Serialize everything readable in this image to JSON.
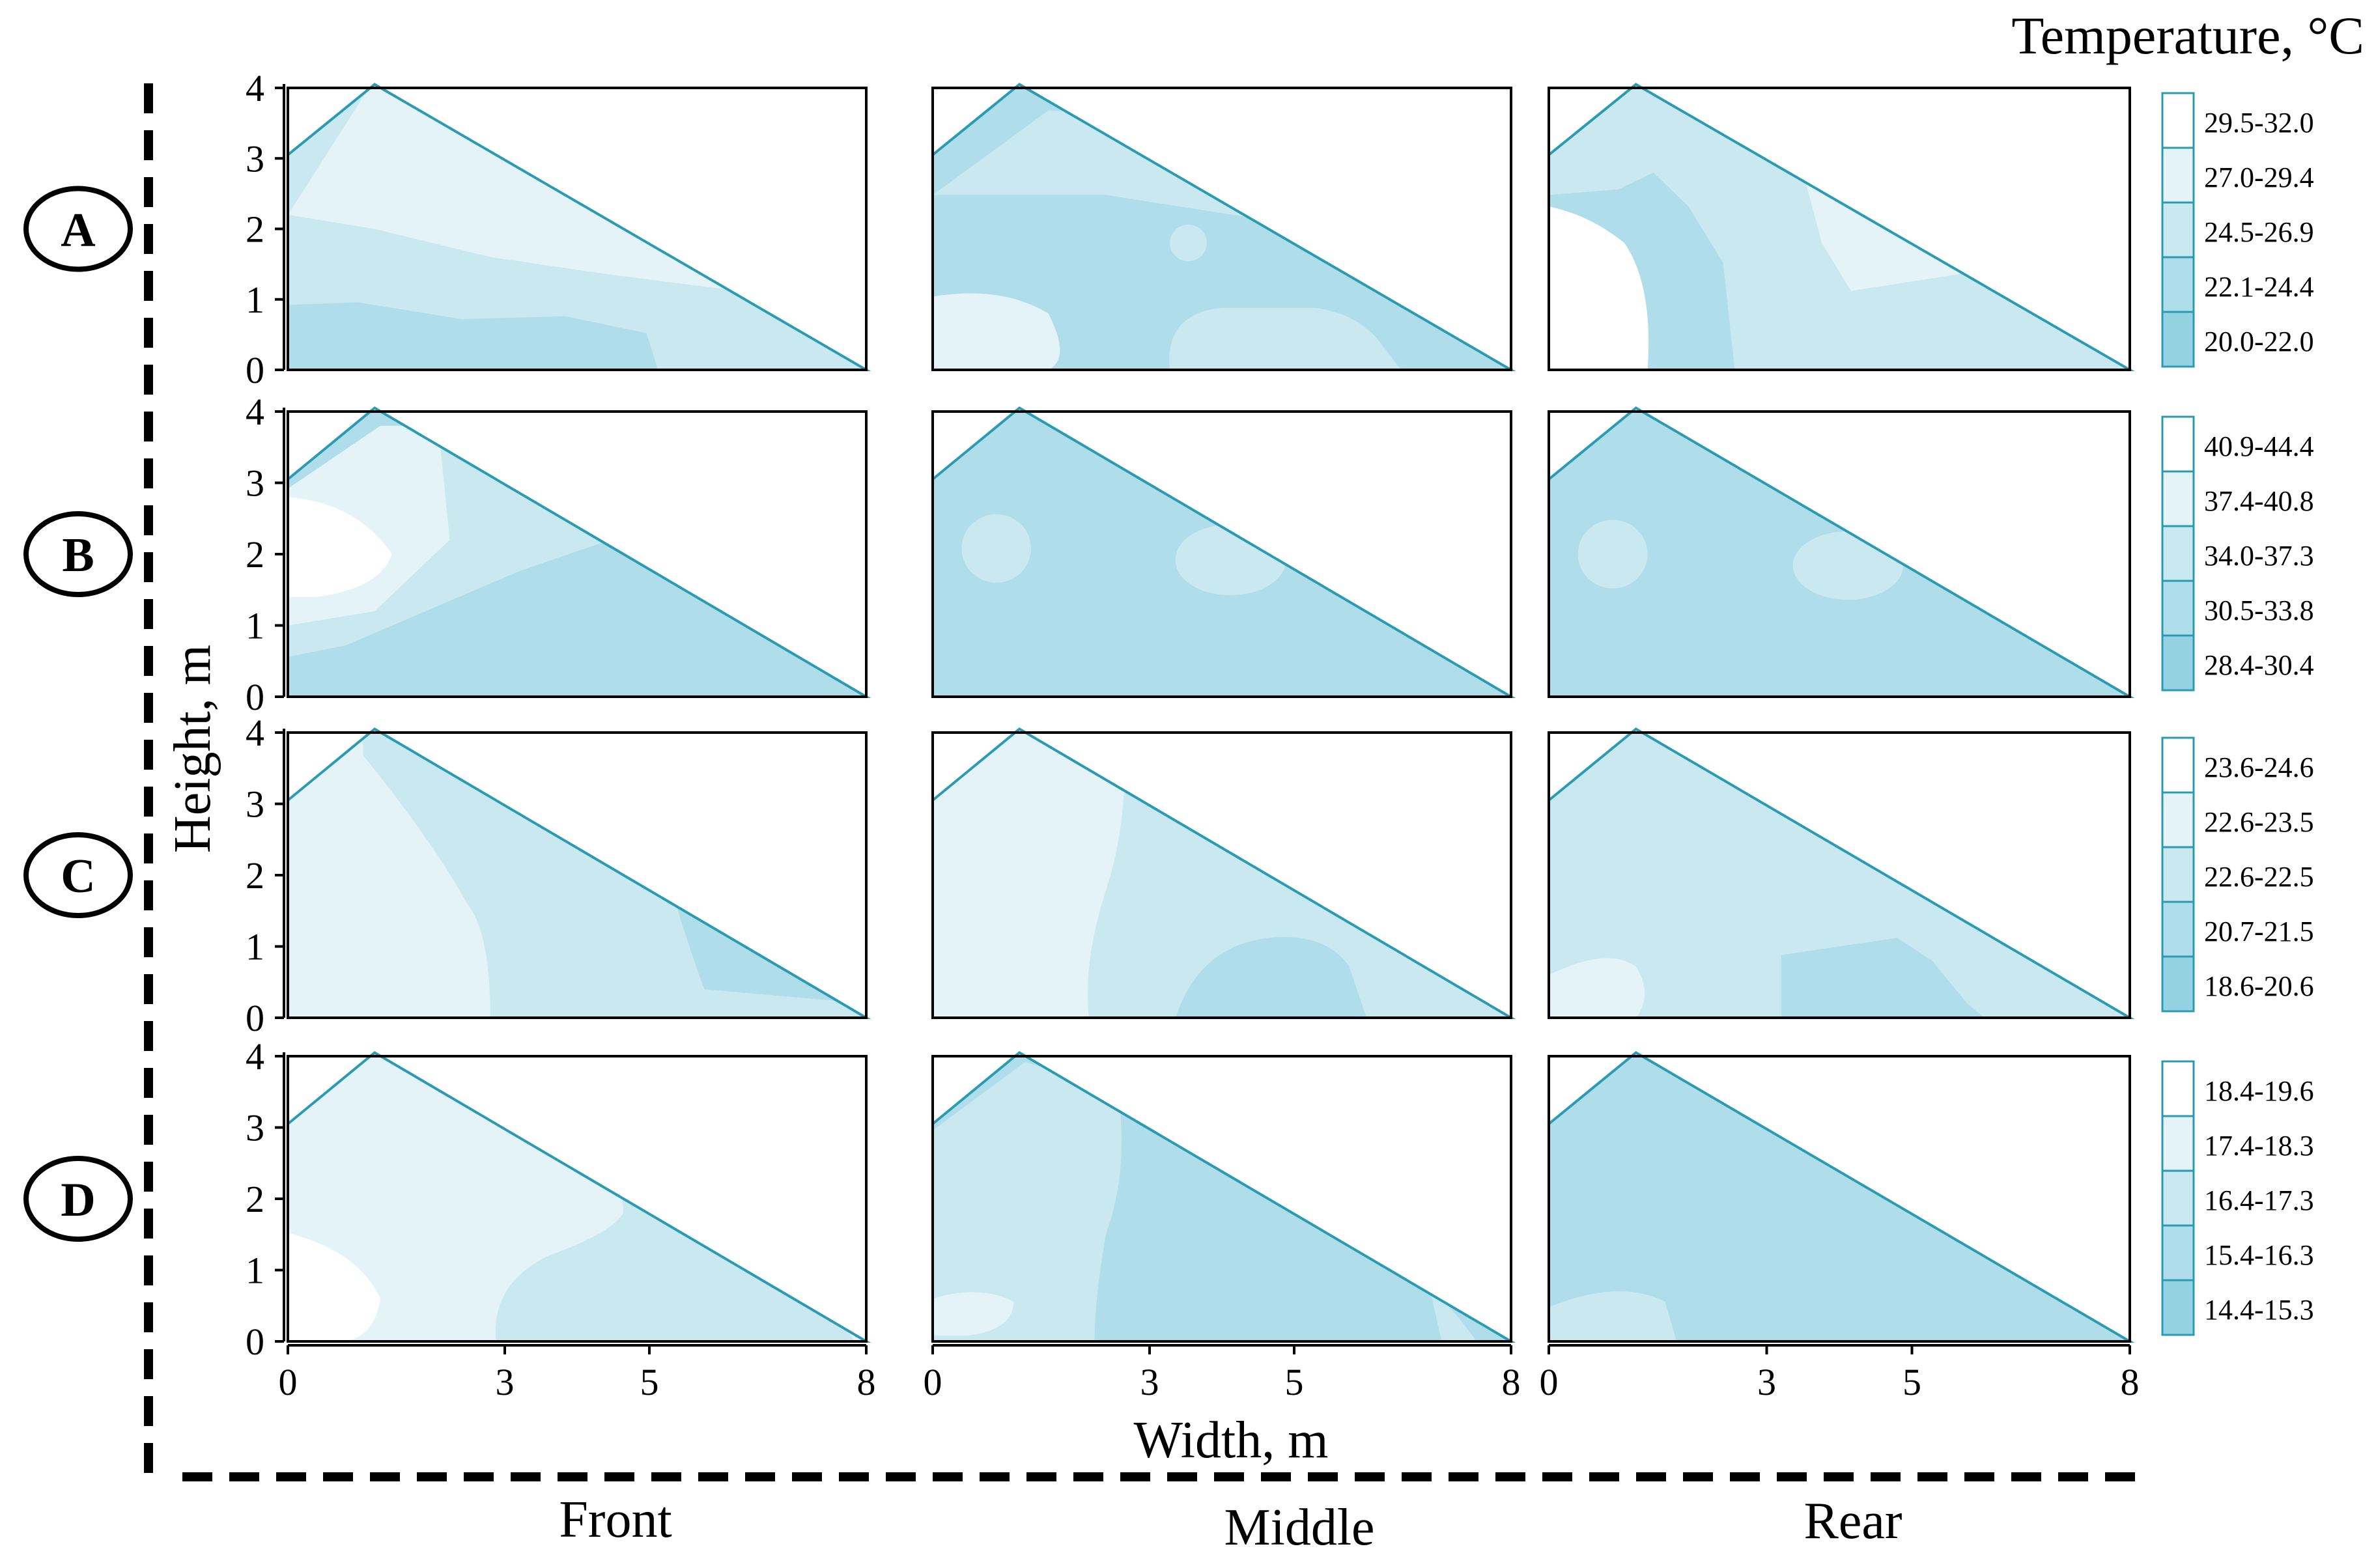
{
  "figure": {
    "title": "Temperature, °C",
    "ylabel": "Height, m",
    "xlabel": "Width, m",
    "positions": [
      "Front",
      "Middle",
      "Rear"
    ],
    "scenarios": [
      "A",
      "B",
      "C",
      "D"
    ]
  },
  "chart_data": {
    "type": "heatmap",
    "title": "Temperature, °C",
    "xlabel": "Width, m",
    "ylabel": "Height, m",
    "x_ticks": [
      "0",
      "3",
      "5",
      "8"
    ],
    "y_ticks": [
      "0",
      "1",
      "2",
      "3",
      "4"
    ],
    "xlim": [
      0,
      8
    ],
    "ylim": [
      0,
      4
    ],
    "greenhouse_outline": {
      "x": [
        0,
        1.2,
        8,
        8,
        0
      ],
      "y": [
        3.05,
        4.05,
        0,
        0,
        0
      ]
    },
    "legend_palette": [
      "#ffffff",
      "#e3f3f7",
      "#cae8f0",
      "#afdde9",
      "#94d1e1"
    ],
    "rows": [
      {
        "label": "A",
        "legend": [
          "29.5-32.0",
          "27.0-29.4",
          "24.5-26.9",
          "22.1-24.4",
          "20.0-22.0"
        ]
      },
      {
        "label": "B",
        "legend": [
          "40.9-44.4",
          "37.4-40.8",
          "34.0-37.3",
          "30.5-33.8",
          "28.4-30.4"
        ]
      },
      {
        "label": "C",
        "legend": [
          "23.6-24.6",
          "22.6-23.5",
          "22.6-22.5",
          "20.7-21.5",
          "18.6-20.6"
        ]
      },
      {
        "label": "D",
        "legend": [
          "18.4-19.6",
          "17.4-18.3",
          "16.4-17.3",
          "15.4-16.3",
          "14.4-15.3"
        ]
      }
    ]
  }
}
